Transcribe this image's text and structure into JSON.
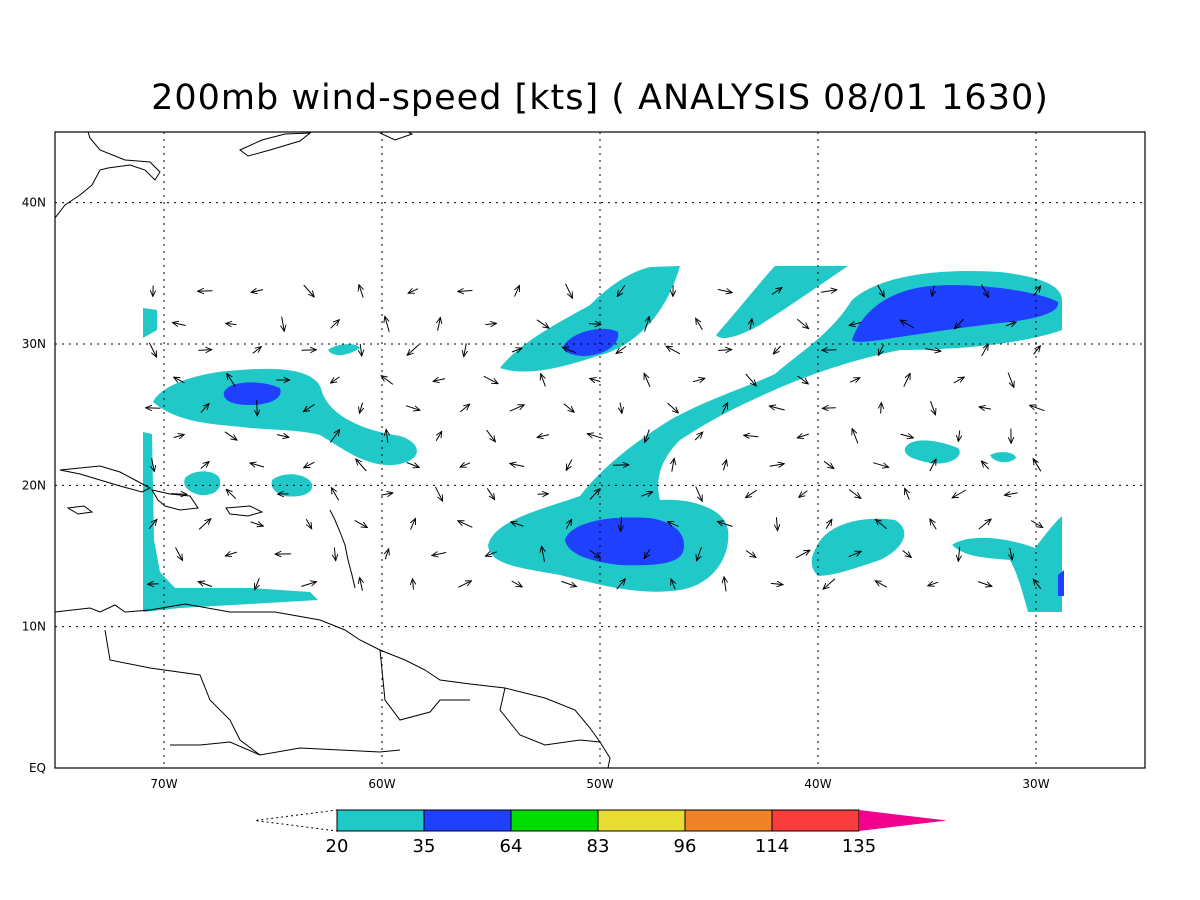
{
  "title": "200mb wind-speed [kts] ( ANALYSIS 08/01 1630)",
  "map": {
    "lon_range": [
      -75,
      -25
    ],
    "lat_range": [
      0,
      45
    ],
    "lon_ticks": [
      {
        "value": -70,
        "label": "70W"
      },
      {
        "value": -60,
        "label": "60W"
      },
      {
        "value": -50,
        "label": "50W"
      },
      {
        "value": -40,
        "label": "40W"
      },
      {
        "value": -30,
        "label": "30W"
      }
    ],
    "lat_ticks": [
      {
        "value": 0,
        "label": "EQ"
      },
      {
        "value": 10,
        "label": "10N"
      },
      {
        "value": 20,
        "label": "20N"
      },
      {
        "value": 30,
        "label": "30N"
      },
      {
        "value": 40,
        "label": "40N"
      }
    ],
    "grid": "dotted"
  },
  "colorbar": {
    "levels": [
      "20",
      "35",
      "64",
      "83",
      "96",
      "114",
      "135"
    ],
    "colors": [
      "#20c8c8",
      "#2040ff",
      "#00dc00",
      "#e6dc32",
      "#f08228",
      "#fa3c3c",
      "#f0008c"
    ]
  }
}
